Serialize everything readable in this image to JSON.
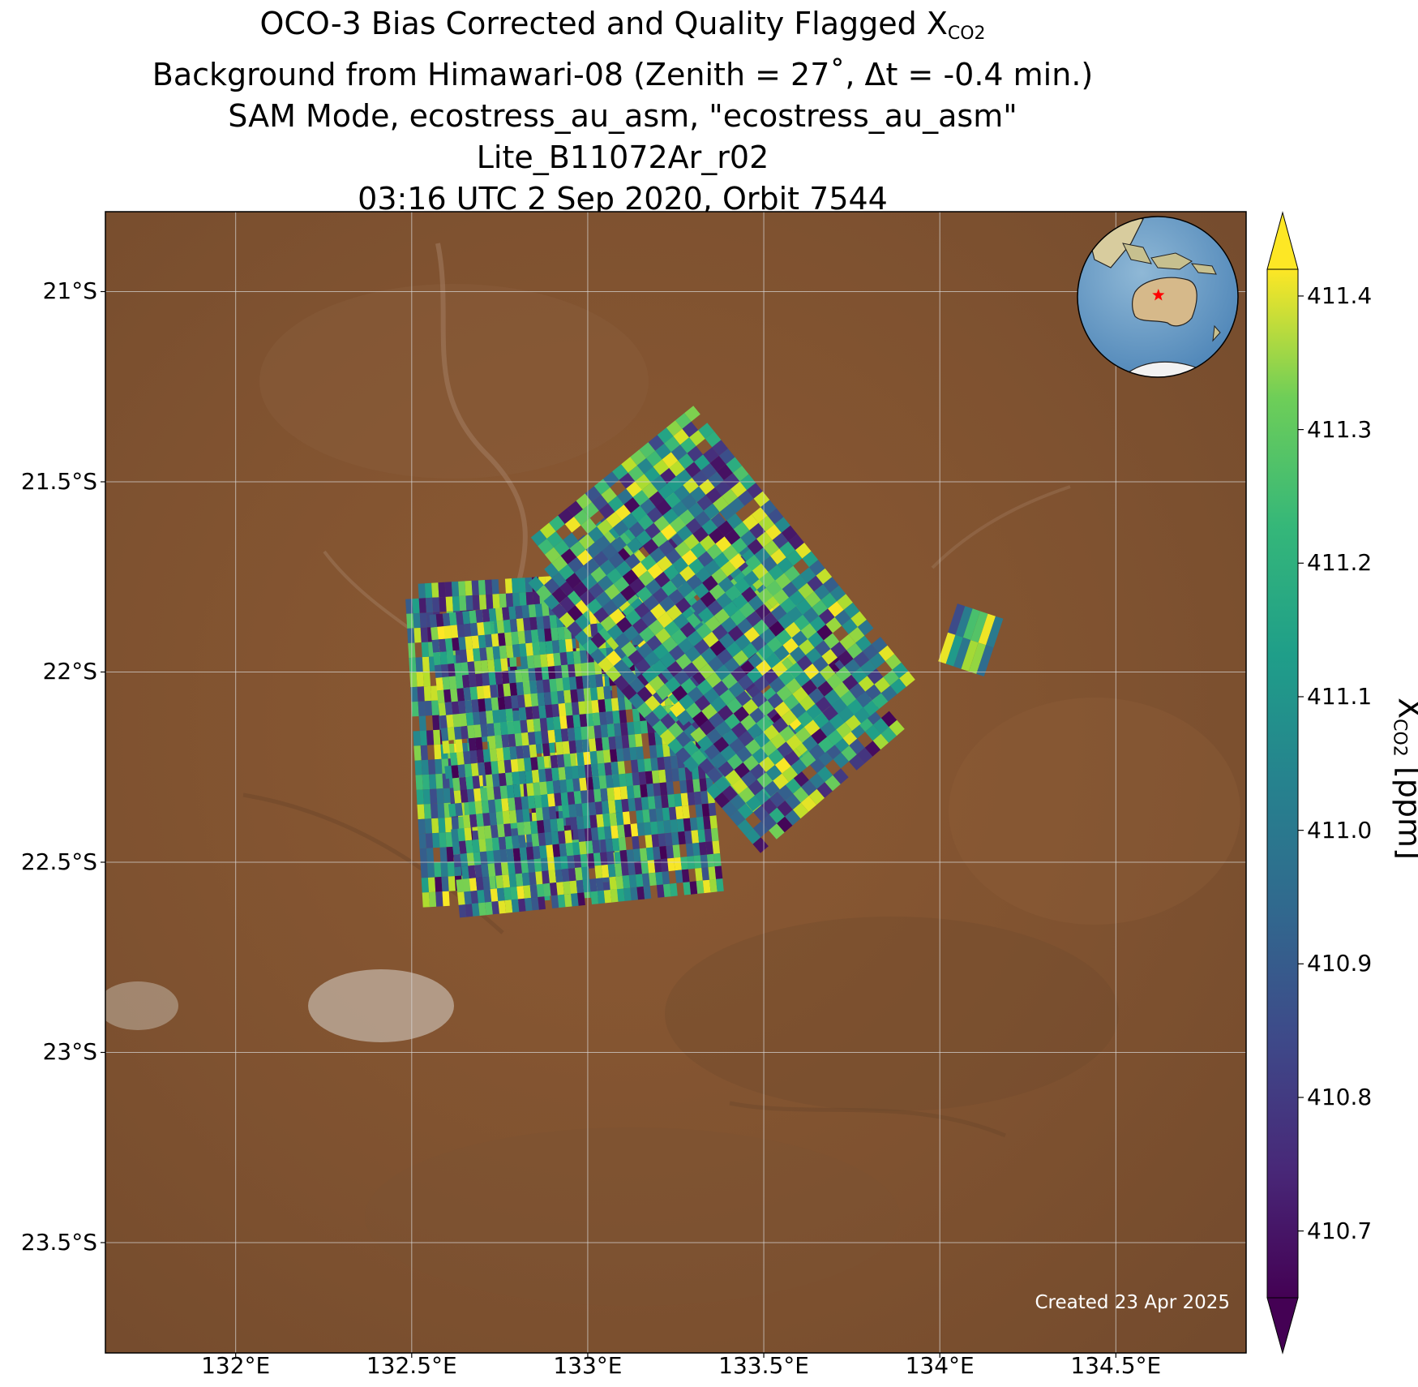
{
  "title": {
    "line1_main": "OCO-3 Bias Corrected and Quality Flagged X",
    "line1_sub": "CO2",
    "line2": "Background from Himawari-08 (Zenith = 27˚, Δt = -0.4 min.)",
    "line3": "SAM Mode, ecostress_au_asm, \"ecostress_au_asm\"",
    "line4": "Lite_B11072Ar_r02",
    "line5": "03:16 UTC 2 Sep 2020, Orbit 7544"
  },
  "map": {
    "lon_range": [
      131.63,
      134.87
    ],
    "lat_range": [
      -23.79,
      -20.79
    ],
    "background": "satellite true-color image (Himawari-08), Australian interior desert",
    "lat_ticks": [
      {
        "value": -21.0,
        "label": "21°S"
      },
      {
        "value": -21.5,
        "label": "21.5°S"
      },
      {
        "value": -22.0,
        "label": "22°S"
      },
      {
        "value": -22.5,
        "label": "22.5°S"
      },
      {
        "value": -23.0,
        "label": "23°S"
      },
      {
        "value": -23.5,
        "label": "23.5°S"
      }
    ],
    "lon_ticks": [
      {
        "value": 132.0,
        "label": "132°E"
      },
      {
        "value": 132.5,
        "label": "132.5°E"
      },
      {
        "value": 133.0,
        "label": "133°E"
      },
      {
        "value": 133.5,
        "label": "133.5°E"
      },
      {
        "value": 134.0,
        "label": "134°E"
      },
      {
        "value": 134.5,
        "label": "134.5°E"
      }
    ],
    "gridlines": true,
    "created_label": "Created 23 Apr 2025",
    "inset": {
      "type": "globe",
      "location": "top-right",
      "marker": "red-star",
      "marker_lon": 133.4,
      "marker_lat": -22.0
    }
  },
  "chart_data": {
    "type": "heatmap",
    "variable": "XCO2",
    "units": "ppm",
    "colormap": "viridis",
    "vmin": 410.65,
    "vmax": 411.42,
    "extend": "both",
    "swaths": [
      {
        "lon_start": 132.48,
        "lat_start": -21.77,
        "lon_end": 133.05,
        "lat_end": -21.74,
        "length_deg": 0.85,
        "n_cross": 30,
        "n_along": 22
      },
      {
        "lon_start": 132.55,
        "lat_start": -21.85,
        "lon_end": 133.3,
        "lat_end": -21.78,
        "length_deg": 0.8,
        "n_cross": 40,
        "n_along": 24
      },
      {
        "lon_start": 133.24,
        "lat_start": -21.44,
        "lon_end": 133.9,
        "lat_end": -22.15,
        "length_deg": 0.5,
        "n_cross": 30,
        "n_along": 18
      },
      {
        "lon_start": 133.3,
        "lat_start": -21.3,
        "lon_end": 133.93,
        "lat_end": -22.02,
        "length_deg": 0.55,
        "n_cross": 32,
        "n_along": 18
      },
      {
        "lon_start": 134.05,
        "lat_start": -21.82,
        "lon_end": 134.18,
        "lat_end": -21.86,
        "length_deg": 0.16,
        "n_cross": 6,
        "n_along": 2
      }
    ]
  },
  "colorbar": {
    "label_main": "X",
    "label_sub": "CO2",
    "label_units": " [ppm]",
    "ticks": [
      {
        "value": 410.7,
        "label": "410.7"
      },
      {
        "value": 410.8,
        "label": "410.8"
      },
      {
        "value": 410.9,
        "label": "410.9"
      },
      {
        "value": 411.0,
        "label": "411.0"
      },
      {
        "value": 411.1,
        "label": "411.1"
      },
      {
        "value": 411.2,
        "label": "411.2"
      },
      {
        "value": 411.3,
        "label": "411.3"
      },
      {
        "value": 411.4,
        "label": "411.4"
      }
    ]
  }
}
